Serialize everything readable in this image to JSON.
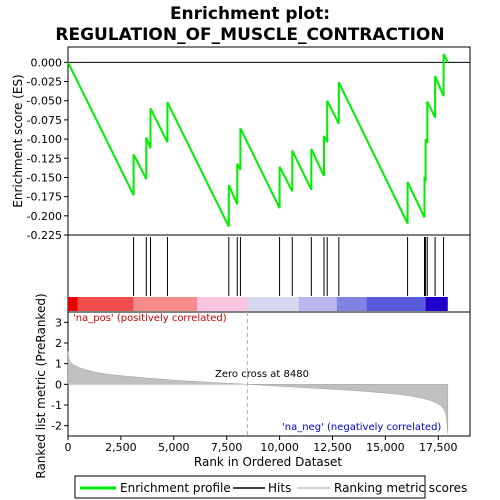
{
  "chart_data": {
    "type": "line",
    "title_line1": "Enrichment plot:",
    "title_line2": "REGULATION_OF_MUSCLE_CONTRACTION",
    "es_panel": {
      "ylabel": "Enrichment score (ES)",
      "ylim": [
        -0.225,
        0.02
      ],
      "yticks": [
        0.0,
        -0.025,
        -0.05,
        -0.075,
        -0.1,
        -0.125,
        -0.15,
        -0.175,
        -0.2,
        -0.225
      ],
      "ytick_labels": [
        "0.000",
        "-0.025",
        "-0.050",
        "-0.075",
        "-0.100",
        "-0.125",
        "-0.150",
        "-0.175",
        "-0.200",
        "-0.225"
      ],
      "line_color": "#00ee00",
      "points": [
        [
          0,
          0.0
        ],
        [
          3100,
          -0.173
        ],
        [
          3100,
          -0.12
        ],
        [
          3700,
          -0.152
        ],
        [
          3700,
          -0.098
        ],
        [
          3900,
          -0.112
        ],
        [
          3900,
          -0.06
        ],
        [
          4700,
          -0.104
        ],
        [
          4700,
          -0.052
        ],
        [
          7600,
          -0.214
        ],
        [
          7600,
          -0.16
        ],
        [
          8000,
          -0.185
        ],
        [
          8000,
          -0.132
        ],
        [
          8150,
          -0.14
        ],
        [
          8150,
          -0.086
        ],
        [
          10000,
          -0.19
        ],
        [
          10000,
          -0.136
        ],
        [
          10600,
          -0.168
        ],
        [
          10600,
          -0.115
        ],
        [
          11500,
          -0.166
        ],
        [
          11500,
          -0.113
        ],
        [
          12100,
          -0.148
        ],
        [
          12100,
          -0.096
        ],
        [
          12250,
          -0.104
        ],
        [
          12250,
          -0.05
        ],
        [
          12800,
          -0.08
        ],
        [
          12800,
          -0.026
        ],
        [
          16050,
          -0.21
        ],
        [
          16050,
          -0.156
        ],
        [
          16850,
          -0.202
        ],
        [
          16850,
          -0.149
        ],
        [
          16900,
          -0.155
        ],
        [
          16900,
          -0.1
        ],
        [
          16980,
          -0.105
        ],
        [
          16980,
          -0.051
        ],
        [
          17350,
          -0.072
        ],
        [
          17350,
          -0.018
        ],
        [
          17750,
          -0.044
        ],
        [
          17750,
          0.011
        ],
        [
          17950,
          0.0
        ]
      ]
    },
    "hits": {
      "positions": [
        3100,
        3700,
        3900,
        4700,
        7600,
        8000,
        8150,
        10000,
        10600,
        11500,
        12100,
        12250,
        12800,
        16050,
        16850,
        16900,
        16980,
        17350,
        17750
      ]
    },
    "colorbar": {
      "bands": [
        {
          "from": 0,
          "to": 450,
          "color": "#e60000"
        },
        {
          "from": 450,
          "to": 3100,
          "color": "#f04c4c"
        },
        {
          "from": 3100,
          "to": 6100,
          "color": "#f78a8a"
        },
        {
          "from": 6100,
          "to": 8480,
          "color": "#fbc4df"
        },
        {
          "from": 8480,
          "to": 10900,
          "color": "#d8d8f4"
        },
        {
          "from": 10900,
          "to": 12700,
          "color": "#b7b7ec"
        },
        {
          "from": 12700,
          "to": 14100,
          "color": "#8282e2"
        },
        {
          "from": 14100,
          "to": 16900,
          "color": "#5a5adc"
        },
        {
          "from": 16900,
          "to": 17950,
          "color": "#2000c8"
        }
      ]
    },
    "metric_panel": {
      "ylabel": "Ranked list metric (PreRanked)",
      "ylim": [
        -2.5,
        3.5
      ],
      "yticks": [
        3,
        2,
        1,
        0,
        -1,
        -2
      ],
      "ytick_labels": [
        "3",
        "2",
        "1",
        "0",
        "-1",
        "-2"
      ],
      "metric_curve": [
        [
          0,
          1.6
        ],
        [
          30,
          1.3
        ],
        [
          100,
          1.1
        ],
        [
          250,
          0.95
        ],
        [
          500,
          0.82
        ],
        [
          1000,
          0.66
        ],
        [
          1500,
          0.55
        ],
        [
          2000,
          0.47
        ],
        [
          3000,
          0.37
        ],
        [
          4000,
          0.28
        ],
        [
          5000,
          0.2
        ],
        [
          6000,
          0.14
        ],
        [
          7000,
          0.08
        ],
        [
          8480,
          0.0
        ],
        [
          9500,
          -0.06
        ],
        [
          10500,
          -0.12
        ],
        [
          11500,
          -0.18
        ],
        [
          12500,
          -0.24
        ],
        [
          13500,
          -0.3
        ],
        [
          14500,
          -0.38
        ],
        [
          15500,
          -0.47
        ],
        [
          16200,
          -0.57
        ],
        [
          16800,
          -0.68
        ],
        [
          17200,
          -0.8
        ],
        [
          17500,
          -0.95
        ],
        [
          17700,
          -1.1
        ],
        [
          17850,
          -1.4
        ],
        [
          17920,
          -1.9
        ],
        [
          17950,
          -2.4
        ]
      ],
      "pos_label": "'na_pos' (positively correlated)",
      "neg_label": "'na_neg' (negatively correlated)",
      "zero_cross_label": "Zero cross at 8480",
      "zero_cross": 8480,
      "pos_color": "#cc0000",
      "neg_color": "#0000cc"
    },
    "xaxis": {
      "xlabel": "Rank in Ordered Dataset",
      "xlim": [
        0,
        19000
      ],
      "xticks": [
        0,
        2500,
        5000,
        7500,
        10000,
        12500,
        15000,
        17500
      ],
      "xtick_labels": [
        "0",
        "2,500",
        "5,000",
        "7,500",
        "10,000",
        "12,500",
        "15,000",
        "17,500"
      ]
    },
    "legend": {
      "entries": [
        {
          "label": "Enrichment profile",
          "color": "#00ee00"
        },
        {
          "label": "Hits",
          "color": "#000000"
        },
        {
          "label": "Ranking metric scores",
          "color": "#c0c0c0"
        }
      ]
    }
  }
}
